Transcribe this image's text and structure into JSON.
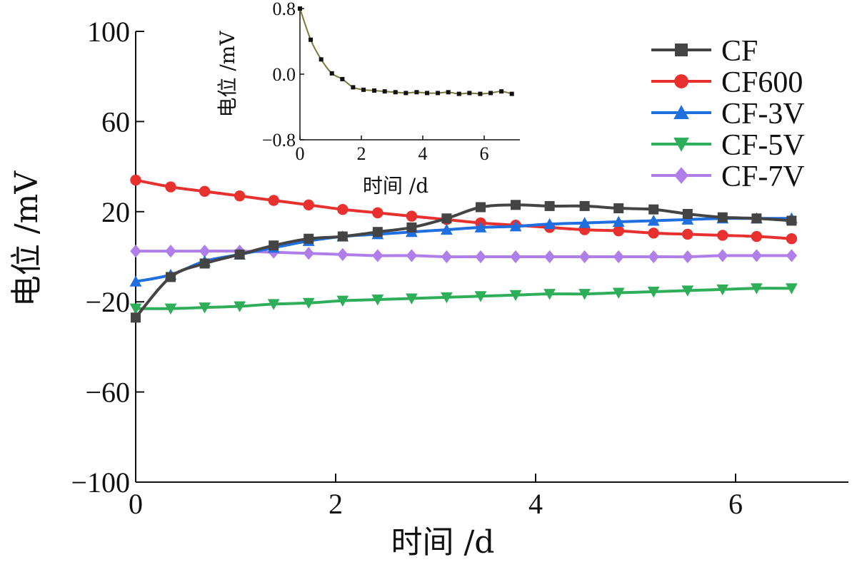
{
  "colors": {
    "CF": "#444444",
    "CF600": "#e8312e",
    "CF-3V": "#1f6fe0",
    "CF-5V": "#2fae5a",
    "CF-7V": "#b07ee8",
    "inset_line": "#7a7a3a",
    "inset_marker": "#111111"
  },
  "chart_data": [
    {
      "type": "line",
      "xlabel": "时间 /d",
      "ylabel": "电位 /mV",
      "xlim": [
        0,
        7
      ],
      "ylim": [
        -100,
        100
      ],
      "x_ticks": [
        "0",
        "2",
        "4",
        "6"
      ],
      "y_ticks": [
        "100",
        "60",
        "20",
        "−20",
        "−60",
        "−100"
      ],
      "grid": false,
      "legend_position": "top-right",
      "x": [
        0,
        0.35,
        0.69,
        1.04,
        1.38,
        1.73,
        2.07,
        2.42,
        2.76,
        3.11,
        3.45,
        3.8,
        4.14,
        4.49,
        4.83,
        5.18,
        5.52,
        5.87,
        6.21,
        6.56
      ],
      "series": [
        {
          "name": "CF",
          "marker": "square",
          "values": [
            -27,
            -9,
            -3,
            1,
            5,
            8,
            9,
            11,
            13,
            17,
            22,
            23,
            22.5,
            22.5,
            21.5,
            21,
            19,
            17.5,
            17,
            16
          ]
        },
        {
          "name": "CF600",
          "marker": "circle",
          "values": [
            34,
            31,
            29,
            27,
            25,
            23,
            21,
            19.5,
            18,
            16.5,
            15,
            14,
            13,
            12,
            11.5,
            10.5,
            10,
            9.5,
            9,
            8
          ]
        },
        {
          "name": "CF-3V",
          "marker": "triangle-up",
          "values": [
            -11,
            -8,
            -2,
            1,
            4,
            7,
            9,
            10,
            11,
            12,
            13,
            13.5,
            14.5,
            15,
            15.5,
            16,
            16.5,
            17,
            17,
            17
          ]
        },
        {
          "name": "CF-5V",
          "marker": "triangle-down",
          "values": [
            -23,
            -23,
            -22.5,
            -22,
            -21,
            -20.5,
            -19.5,
            -19,
            -18.5,
            -18,
            -17.5,
            -17,
            -16.5,
            -16.5,
            -16,
            -15.5,
            -15,
            -14.5,
            -14,
            -14
          ]
        },
        {
          "name": "CF-7V",
          "marker": "diamond",
          "values": [
            2.5,
            2.5,
            2.5,
            2.5,
            2,
            1.5,
            1,
            0.5,
            0.5,
            0,
            0,
            0,
            0,
            0,
            0,
            0,
            0,
            0.5,
            0.5,
            0.5
          ]
        }
      ]
    },
    {
      "type": "line",
      "inset": true,
      "xlabel": "时间 /d",
      "ylabel": "电位 /mV",
      "xlim": [
        0,
        7
      ],
      "ylim": [
        -0.8,
        0.8
      ],
      "x_ticks": [
        "0",
        "2",
        "4",
        "6"
      ],
      "y_ticks": [
        "0.8",
        "0.0",
        "−0.8"
      ],
      "grid": false,
      "x": [
        0,
        0.35,
        0.69,
        1.04,
        1.38,
        1.73,
        2.07,
        2.42,
        2.76,
        3.11,
        3.45,
        3.8,
        4.14,
        4.49,
        4.83,
        5.18,
        5.52,
        5.87,
        6.21,
        6.56,
        6.9
      ],
      "series": [
        {
          "values": [
            0.8,
            0.42,
            0.18,
            0.01,
            -0.06,
            -0.16,
            -0.19,
            -0.2,
            -0.21,
            -0.22,
            -0.23,
            -0.22,
            -0.23,
            -0.23,
            -0.22,
            -0.24,
            -0.23,
            -0.24,
            -0.23,
            -0.21,
            -0.24
          ]
        }
      ]
    }
  ]
}
